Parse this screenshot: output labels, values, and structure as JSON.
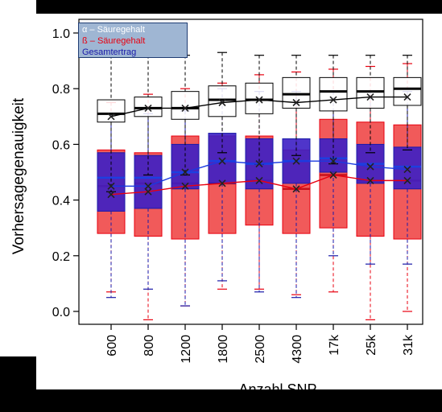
{
  "chart_data": {
    "type": "box",
    "xlabel": "Anzahl SNP",
    "ylabel": "Vorhersagegenauigkeit",
    "categories": [
      "600",
      "800",
      "1200",
      "1800",
      "2500",
      "4300",
      "17k",
      "25k",
      "31k"
    ],
    "ylim": [
      0.0,
      1.0
    ],
    "yticks": [
      "0.0",
      "0.2",
      "0.4",
      "0.6",
      "0.8",
      "1.0"
    ],
    "legend": [
      {
        "label": "α – Säuregehalt",
        "color": "#ffffff"
      },
      {
        "label": "ß – Säuregehalt",
        "color": "#e8000f"
      },
      {
        "label": "Gesamtertrag",
        "color": "#1a1aa8"
      }
    ],
    "legend_position": "top-left",
    "series": [
      {
        "name": "α – Säuregehalt",
        "fill": "#ffffff",
        "stroke": "#000000",
        "boxes": [
          {
            "lo": 0.43,
            "q1": 0.68,
            "med": 0.71,
            "q3": 0.76,
            "hi": 0.92,
            "mean": 0.7
          },
          {
            "lo": 0.49,
            "q1": 0.7,
            "med": 0.73,
            "q3": 0.77,
            "hi": 0.92,
            "mean": 0.73
          },
          {
            "lo": 0.49,
            "q1": 0.69,
            "med": 0.73,
            "q3": 0.79,
            "hi": 0.92,
            "mean": 0.73
          },
          {
            "lo": 0.57,
            "q1": 0.7,
            "med": 0.76,
            "q3": 0.81,
            "hi": 0.93,
            "mean": 0.75
          },
          {
            "lo": 0.53,
            "q1": 0.71,
            "med": 0.76,
            "q3": 0.82,
            "hi": 0.92,
            "mean": 0.76
          },
          {
            "lo": 0.56,
            "q1": 0.73,
            "med": 0.78,
            "q3": 0.84,
            "hi": 0.92,
            "mean": 0.75
          },
          {
            "lo": 0.53,
            "q1": 0.72,
            "med": 0.79,
            "q3": 0.84,
            "hi": 0.92,
            "mean": 0.76
          },
          {
            "lo": 0.57,
            "q1": 0.73,
            "med": 0.79,
            "q3": 0.84,
            "hi": 0.92,
            "mean": 0.77
          },
          {
            "lo": 0.58,
            "q1": 0.74,
            "med": 0.8,
            "q3": 0.84,
            "hi": 0.92,
            "mean": 0.77
          }
        ]
      },
      {
        "name": "ß – Säuregehalt",
        "fill": "#f04848",
        "stroke": "#e8000f",
        "boxes": [
          {
            "lo": 0.07,
            "q1": 0.28,
            "med": 0.45,
            "q3": 0.58,
            "hi": 0.75,
            "mean": 0.42
          },
          {
            "lo": -0.03,
            "q1": 0.27,
            "med": 0.46,
            "q3": 0.57,
            "hi": 0.78,
            "mean": 0.43
          },
          {
            "lo": 0.02,
            "q1": 0.26,
            "med": 0.46,
            "q3": 0.63,
            "hi": 0.8,
            "mean": 0.45
          },
          {
            "lo": 0.08,
            "q1": 0.28,
            "med": 0.46,
            "q3": 0.63,
            "hi": 0.82,
            "mean": 0.46
          },
          {
            "lo": 0.08,
            "q1": 0.31,
            "med": 0.47,
            "q3": 0.63,
            "hi": 0.85,
            "mean": 0.47
          },
          {
            "lo": 0.06,
            "q1": 0.28,
            "med": 0.44,
            "q3": 0.58,
            "hi": 0.86,
            "mean": 0.44
          },
          {
            "lo": 0.07,
            "q1": 0.3,
            "med": 0.49,
            "q3": 0.69,
            "hi": 0.87,
            "mean": 0.49
          },
          {
            "lo": -0.03,
            "q1": 0.27,
            "med": 0.47,
            "q3": 0.68,
            "hi": 0.88,
            "mean": 0.47
          },
          {
            "lo": 0.0,
            "q1": 0.26,
            "med": 0.47,
            "q3": 0.67,
            "hi": 0.89,
            "mean": 0.47
          }
        ]
      },
      {
        "name": "Gesamtertrag",
        "fill": "#3c1fc4",
        "stroke": "#1a1aa8",
        "boxes": [
          {
            "lo": 0.05,
            "q1": 0.36,
            "med": 0.48,
            "q3": 0.57,
            "hi": 0.71,
            "mean": 0.45
          },
          {
            "lo": 0.08,
            "q1": 0.37,
            "med": 0.48,
            "q3": 0.56,
            "hi": 0.71,
            "mean": 0.45
          },
          {
            "lo": 0.02,
            "q1": 0.44,
            "med": 0.5,
            "q3": 0.6,
            "hi": 0.72,
            "mean": 0.5
          },
          {
            "lo": 0.11,
            "q1": 0.46,
            "med": 0.54,
            "q3": 0.64,
            "hi": 0.8,
            "mean": 0.54
          },
          {
            "lo": 0.07,
            "q1": 0.44,
            "med": 0.53,
            "q3": 0.62,
            "hi": 0.79,
            "mean": 0.53
          },
          {
            "lo": 0.05,
            "q1": 0.46,
            "med": 0.54,
            "q3": 0.62,
            "hi": 0.79,
            "mean": 0.54
          },
          {
            "lo": 0.2,
            "q1": 0.5,
            "med": 0.55,
            "q3": 0.62,
            "hi": 0.79,
            "mean": 0.54
          },
          {
            "lo": 0.17,
            "q1": 0.46,
            "med": 0.53,
            "q3": 0.6,
            "hi": 0.79,
            "mean": 0.52
          },
          {
            "lo": 0.17,
            "q1": 0.44,
            "med": 0.52,
            "q3": 0.59,
            "hi": 0.79,
            "mean": 0.51
          }
        ]
      }
    ]
  }
}
